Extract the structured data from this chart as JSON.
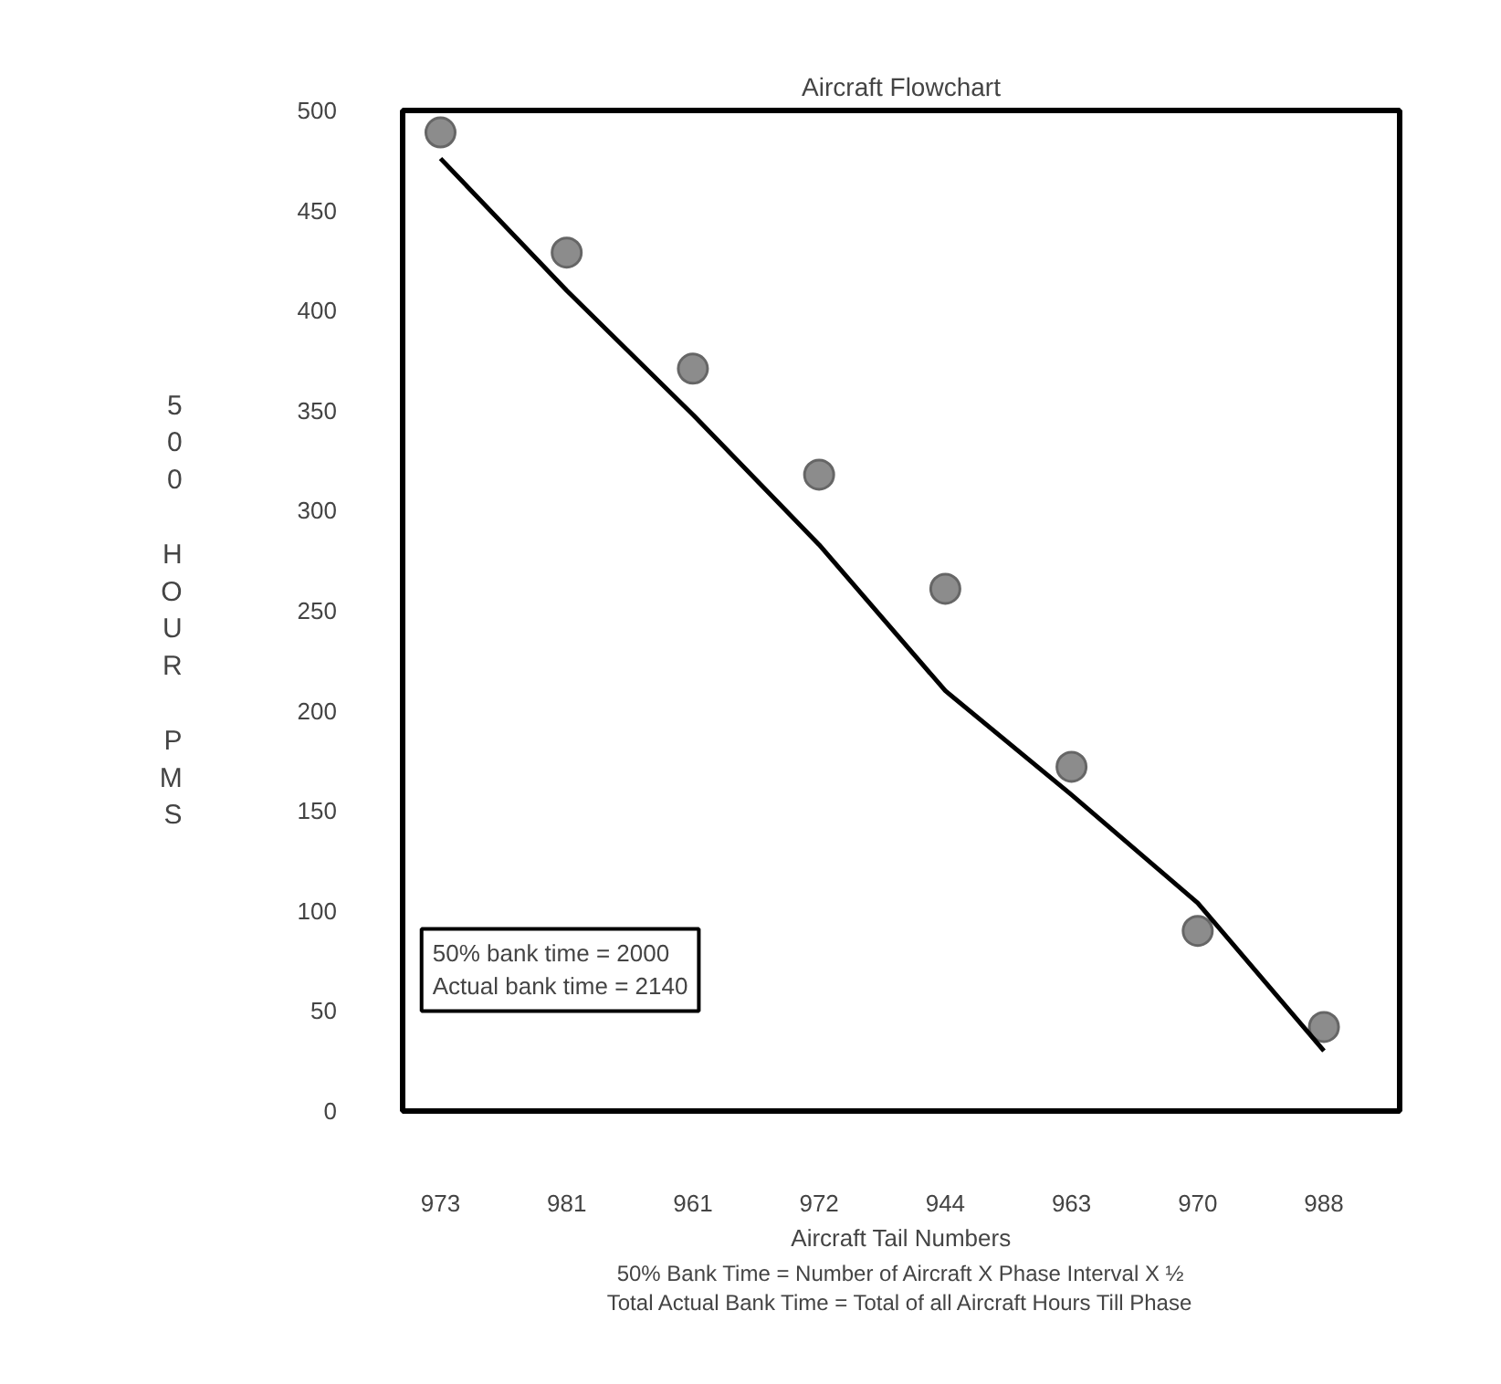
{
  "chart_data": {
    "type": "scatter",
    "title": "Aircraft Flowchart",
    "xlabel": "Aircraft Tail Numbers",
    "ylabel": "500 HOUR PMS",
    "categories": [
      "973",
      "981",
      "961",
      "972",
      "944",
      "963",
      "970",
      "988"
    ],
    "ylim": [
      0,
      500
    ],
    "yticks": [
      0,
      50,
      100,
      150,
      200,
      250,
      300,
      350,
      400,
      450,
      500
    ],
    "grid": false,
    "series": [
      {
        "color": "#8c8c8c",
        "marker": "circle",
        "values": [
          489,
          429,
          371,
          318,
          261,
          172,
          90,
          42
        ]
      },
      {
        "type": "line",
        "marker": "none",
        "color": "#000000",
        "values": [
          476,
          410,
          348,
          283,
          210,
          158,
          104,
          30
        ]
      }
    ],
    "annotations": [
      "50% bank time = 2000\nActual bank time = 2140",
      "50% Bank Time = Number of Aircraft X Phase Interval X ½",
      "Total Actual Bank Time = Total of all Aircraft Hours Till Phase"
    ]
  }
}
